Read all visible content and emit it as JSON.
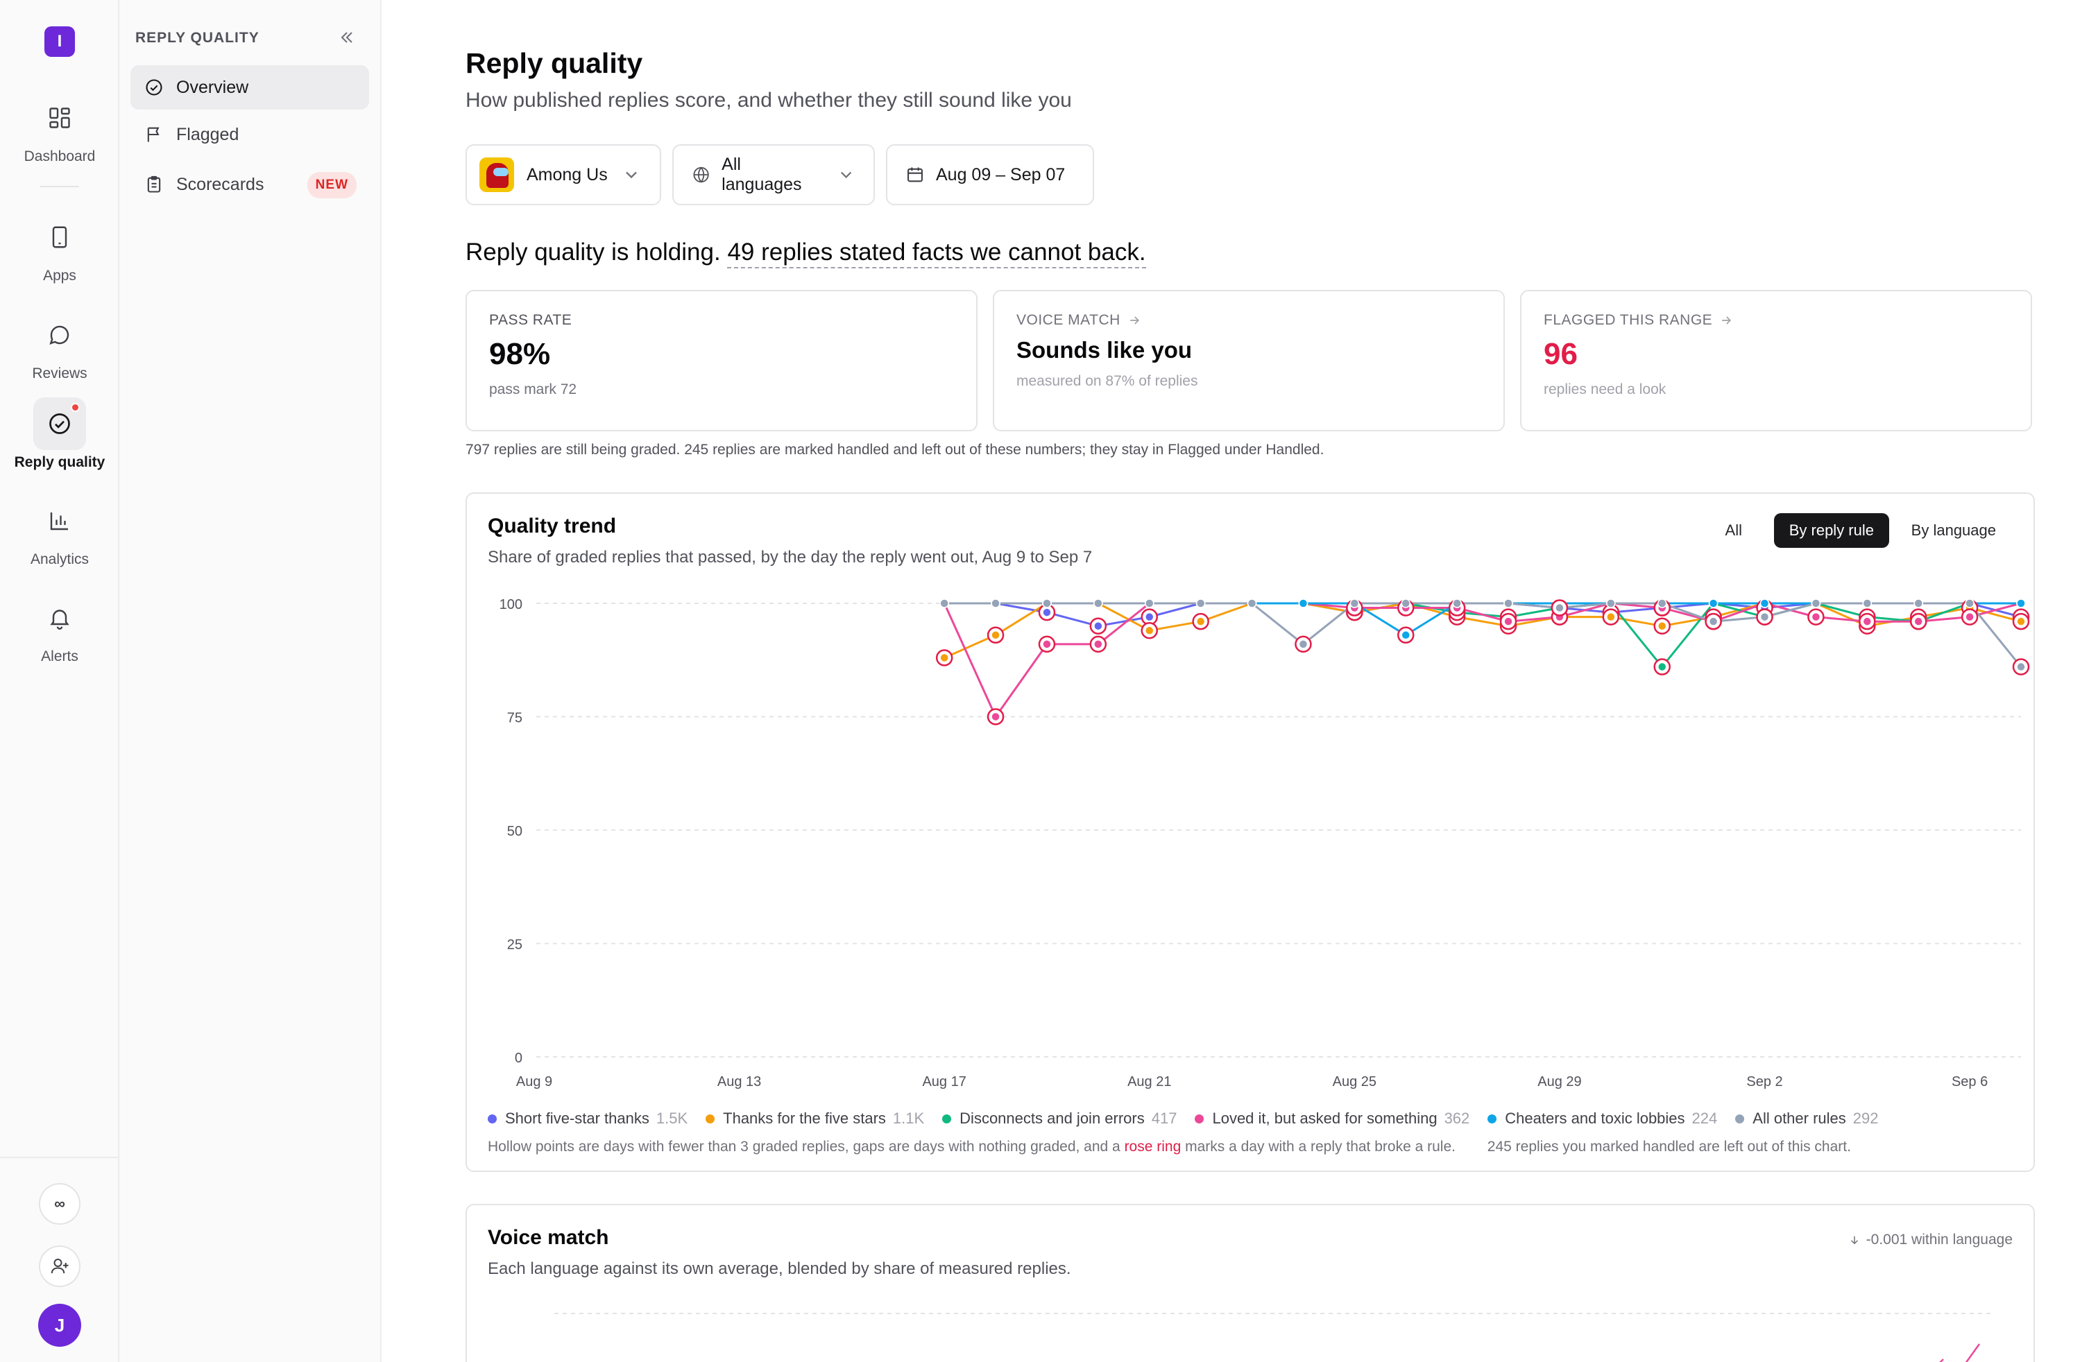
{
  "rail": {
    "logo_letter": "I",
    "items": [
      {
        "label": "Dashboard",
        "icon": "grid-icon"
      },
      {
        "label": "Apps",
        "icon": "phone-icon"
      },
      {
        "label": "Reviews",
        "icon": "chat-bubble-icon"
      },
      {
        "label": "Reply quality",
        "icon": "check-circle-icon",
        "active": true
      },
      {
        "label": "Analytics",
        "icon": "bar-chart-icon"
      },
      {
        "label": "Alerts",
        "icon": "bell-icon"
      }
    ],
    "infinity_label": "∞",
    "avatar_letter": "J"
  },
  "section": {
    "title": "REPLY QUALITY",
    "items": [
      {
        "label": "Overview",
        "icon": "check-circle-icon",
        "active": true
      },
      {
        "label": "Flagged",
        "icon": "flag-icon"
      },
      {
        "label": "Scorecards",
        "icon": "clipboard-icon",
        "badge": "NEW"
      }
    ]
  },
  "page": {
    "title": "Reply quality",
    "subtitle": "How published replies score, and whether they still sound like you",
    "filters": {
      "app": "Among Us",
      "language": "All languages",
      "date_range": "Aug 09 – Sep 07"
    },
    "headline_prefix": "Reply quality is holding.",
    "headline_link": "49 replies stated facts we cannot back."
  },
  "cards": {
    "pass_rate": {
      "label": "PASS RATE",
      "value": "98%",
      "sub": "pass mark 72"
    },
    "voice_match": {
      "label": "VOICE MATCH",
      "value": "Sounds like you",
      "sub": "measured on 87% of replies"
    },
    "flagged": {
      "label": "FLAGGED THIS RANGE",
      "value": "96",
      "sub": "replies need a look"
    }
  },
  "note": "797 replies are still being graded. 245 replies are marked handled and left out of these numbers; they stay in Flagged under Handled.",
  "trend": {
    "title": "Quality trend",
    "subtitle": "Share of graded replies that passed, by the day the reply went out, Aug 9 to Sep 7",
    "tabs": [
      "All",
      "By reply rule",
      "By language"
    ],
    "active_tab": "By reply rule",
    "footnote_1": "Hollow points are days with fewer than 3 graded replies, gaps are days with nothing graded, and a",
    "footnote_rose": "rose ring",
    "footnote_2": "marks a day with a reply that broke a rule.",
    "footnote_3": "245 replies you marked handled are left out of this chart."
  },
  "chart_data": {
    "type": "line",
    "x": [
      "Aug 9",
      "Aug 10",
      "Aug 11",
      "Aug 12",
      "Aug 13",
      "Aug 14",
      "Aug 15",
      "Aug 16",
      "Aug 17",
      "Aug 18",
      "Aug 19",
      "Aug 20",
      "Aug 21",
      "Aug 22",
      "Aug 23",
      "Aug 24",
      "Aug 25",
      "Aug 26",
      "Aug 27",
      "Aug 28",
      "Aug 29",
      "Aug 30",
      "Aug 31",
      "Sep 1",
      "Sep 2",
      "Sep 3",
      "Sep 4",
      "Sep 5",
      "Sep 6",
      "Sep 7"
    ],
    "x_ticks": [
      "Aug 9",
      "Aug 13",
      "Aug 17",
      "Aug 21",
      "Aug 25",
      "Aug 29",
      "Sep 2",
      "Sep 6"
    ],
    "y_ticks": [
      0,
      25,
      50,
      75,
      100
    ],
    "ylim": [
      0,
      100
    ],
    "grid": true,
    "series": [
      {
        "name": "Short five-star thanks",
        "count": "1.5K",
        "color": "#6366f1",
        "values": [
          null,
          null,
          null,
          null,
          null,
          null,
          null,
          null,
          100,
          100,
          98,
          95,
          97,
          100,
          100,
          100,
          98,
          100,
          100,
          100,
          99,
          98,
          99,
          100,
          99,
          100,
          100,
          100,
          100,
          97
        ]
      },
      {
        "name": "Thanks for the five stars",
        "count": "1.1K",
        "color": "#f59e0b",
        "values": [
          null,
          null,
          null,
          null,
          null,
          null,
          null,
          null,
          88,
          93,
          100,
          100,
          94,
          96,
          100,
          100,
          98,
          100,
          97,
          95,
          97,
          97,
          95,
          97,
          100,
          100,
          95,
          97,
          99,
          96
        ]
      },
      {
        "name": "Disconnects and join errors",
        "count": "417",
        "color": "#10b981",
        "values": [
          null,
          null,
          null,
          null,
          null,
          null,
          null,
          null,
          100,
          100,
          100,
          100,
          100,
          100,
          100,
          100,
          100,
          100,
          98,
          97,
          99,
          100,
          86,
          100,
          97,
          100,
          97,
          96,
          100,
          100
        ]
      },
      {
        "name": "Loved it, but asked for something",
        "count": "362",
        "color": "#ec4899",
        "values": [
          null,
          null,
          null,
          null,
          null,
          null,
          null,
          null,
          100,
          75,
          91,
          91,
          100,
          100,
          100,
          100,
          99,
          99,
          99,
          96,
          97,
          100,
          99,
          96,
          100,
          97,
          96,
          96,
          97,
          100
        ]
      },
      {
        "name": "Cheaters and toxic lobbies",
        "count": "224",
        "color": "#0ea5e9",
        "values": [
          null,
          null,
          null,
          null,
          null,
          null,
          null,
          null,
          100,
          100,
          100,
          100,
          100,
          100,
          100,
          100,
          100,
          93,
          100,
          100,
          100,
          100,
          100,
          100,
          100,
          100,
          100,
          100,
          100,
          100
        ]
      },
      {
        "name": "All other rules",
        "count": "292",
        "color": "#94a3b8",
        "values": [
          null,
          null,
          null,
          null,
          null,
          null,
          null,
          null,
          100,
          100,
          100,
          100,
          100,
          100,
          100,
          91,
          100,
          100,
          100,
          100,
          99,
          100,
          100,
          96,
          97,
          100,
          100,
          100,
          100,
          86
        ]
      }
    ]
  },
  "voice": {
    "title": "Voice match",
    "subtitle": "Each language against its own average, blended by share of measured replies.",
    "delta": "-0.001 within language"
  }
}
